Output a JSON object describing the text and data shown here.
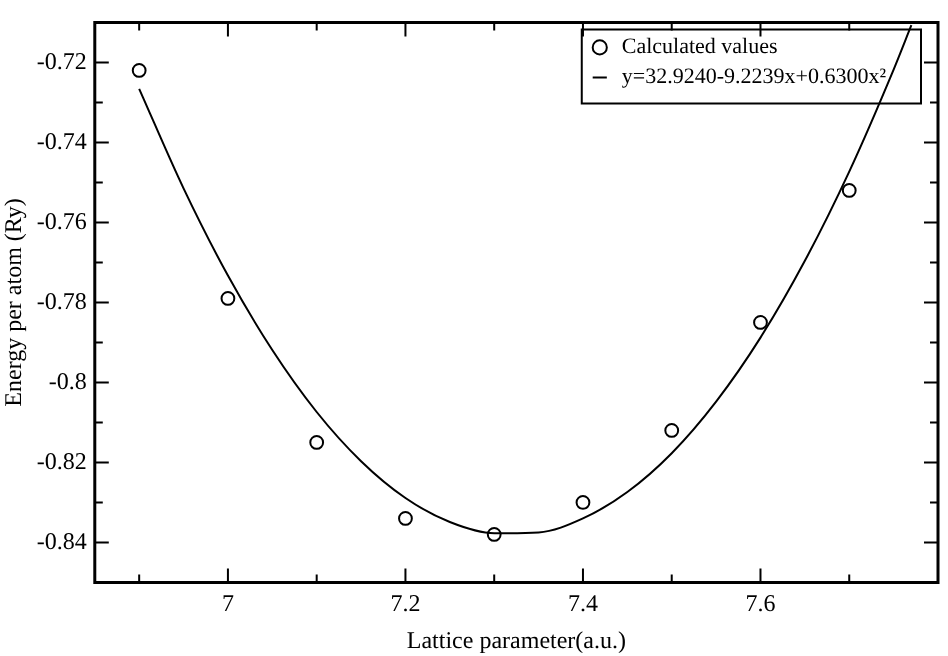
{
  "chart_data": {
    "type": "scatter",
    "xlabel": "Lattice parameter(a.u.)",
    "ylabel": "Energy per atom (Ry)",
    "xlim": [
      6.85,
      7.8
    ],
    "xticks": [
      {
        "value": 6.9,
        "label": null
      },
      7,
      {
        "value": 7.1,
        "label": null
      },
      7.2,
      {
        "value": 7.3,
        "label": null
      },
      7.4,
      {
        "value": 7.5,
        "label": null
      },
      7.6,
      {
        "value": 7.7,
        "label": null
      }
    ],
    "ylim": [
      -0.85,
      -0.71
    ],
    "yticks": [
      {
        "value": -0.85,
        "label": null
      },
      -0.84,
      {
        "value": -0.83,
        "label": null
      },
      -0.82,
      {
        "value": -0.81,
        "label": null
      },
      -0.8,
      {
        "value": -0.79,
        "label": null
      },
      -0.78,
      {
        "value": -0.77,
        "label": null
      },
      -0.76,
      {
        "value": -0.75,
        "label": null
      },
      -0.74,
      {
        "value": -0.73,
        "label": null
      },
      -0.72,
      {
        "value": -0.71,
        "label": null
      }
    ],
    "grid": false,
    "legend": "top right",
    "marker": "circle",
    "series": [
      {
        "name": "Calculated values",
        "type": "scatter",
        "color": "#000000",
        "x": [
          6.9,
          7.0,
          7.1,
          7.2,
          7.3,
          7.4,
          7.5,
          7.6,
          7.7
        ],
        "values": [
          -0.722,
          -0.779,
          -0.815,
          -0.834,
          -0.838,
          -0.83,
          -0.812,
          -0.785,
          -0.752
        ]
      },
      {
        "name": "y=32.9240-9.2239x+0.6300x²",
        "type": "line",
        "marker": "none",
        "line_style": "solid",
        "color": "#000000",
        "x": [
          6.9,
          6.95,
          7.0,
          7.05,
          7.1,
          7.15,
          7.2,
          7.25,
          7.3,
          7.35,
          7.4,
          7.45,
          7.5,
          7.55,
          7.6,
          7.65,
          7.7,
          7.75,
          7.77
        ],
        "values": [
          -0.7266,
          -0.7515,
          -0.7733,
          -0.7919,
          -0.8074,
          -0.8197,
          -0.8289,
          -0.8349,
          -0.8377,
          -0.8375,
          -0.834,
          -0.8274,
          -0.8177,
          -0.8048,
          -0.7888,
          -0.7696,
          -0.7473,
          -0.7218,
          -0.7107
        ]
      }
    ]
  }
}
